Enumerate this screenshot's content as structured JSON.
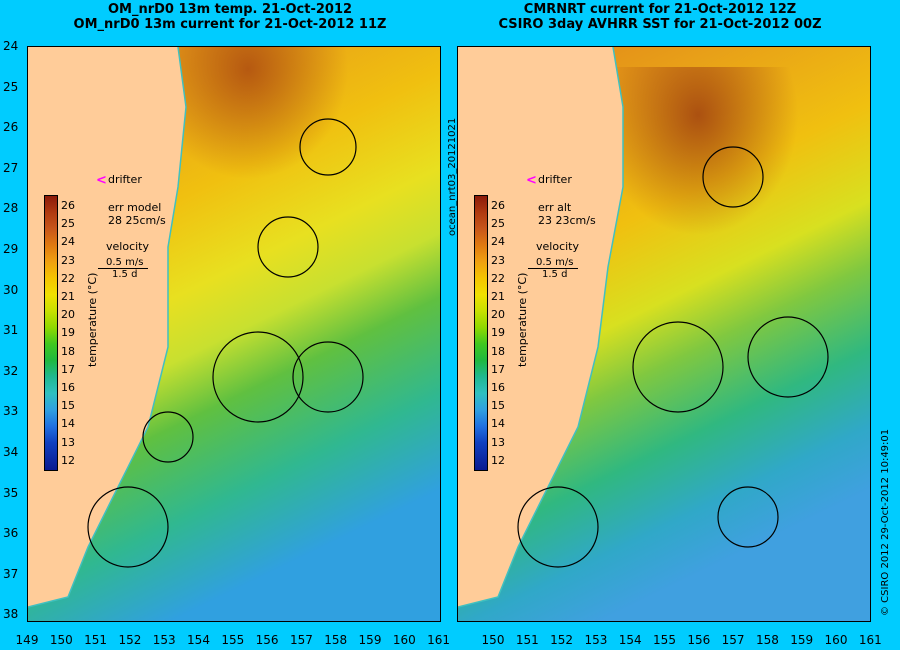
{
  "panels": [
    {
      "title_line1": "OM_nrD0 13m temp. 21-Oct-2012",
      "title_line2": "OM_nrD0 13m current for 21-Oct-2012 11Z",
      "legend": {
        "drifter_label": "drifter",
        "err_label": "err model",
        "err_value": "28 25cm/s",
        "velocity_label": "velocity",
        "velocity_speed": "0.5 m/s",
        "velocity_time": "1.5 d"
      }
    },
    {
      "title_line1": "CMRNRT current for 21-Oct-2012 12Z",
      "title_line2": "CSIRO 3day AVHRR SST for 21-Oct-2012 00Z",
      "legend": {
        "drifter_label": "drifter",
        "err_label": "err alt",
        "err_value": "23 23cm/s",
        "velocity_label": "velocity",
        "velocity_speed": "0.5 m/s",
        "velocity_time": "1.5 d"
      }
    }
  ],
  "colorbar": {
    "label": "temperature (°C)",
    "ticks": [
      "26",
      "25",
      "24",
      "23",
      "22",
      "21",
      "20",
      "19",
      "18",
      "17",
      "16",
      "15",
      "14",
      "13",
      "12"
    ]
  },
  "axes": {
    "lat_ticks": [
      "24",
      "25",
      "26",
      "27",
      "28",
      "29",
      "30",
      "31",
      "32",
      "33",
      "34",
      "35",
      "36",
      "37",
      "38"
    ],
    "lon_ticks_left": [
      "149",
      "150",
      "151",
      "152",
      "153",
      "154",
      "155",
      "156",
      "157",
      "158",
      "159",
      "160",
      "161"
    ],
    "lon_ticks_right": [
      "150",
      "151",
      "152",
      "153",
      "154",
      "155",
      "156",
      "157",
      "158",
      "159",
      "160",
      "161"
    ]
  },
  "side_labels": {
    "middle": "ocean_nrt03_20121021",
    "right": "© CSIRO 2012   29-Oct-2012 10:49:01"
  },
  "colors": {
    "background": "#00ccff",
    "land": "#ffcc99",
    "coastline": "#40c0c0",
    "drifter": "#ff00ff"
  }
}
